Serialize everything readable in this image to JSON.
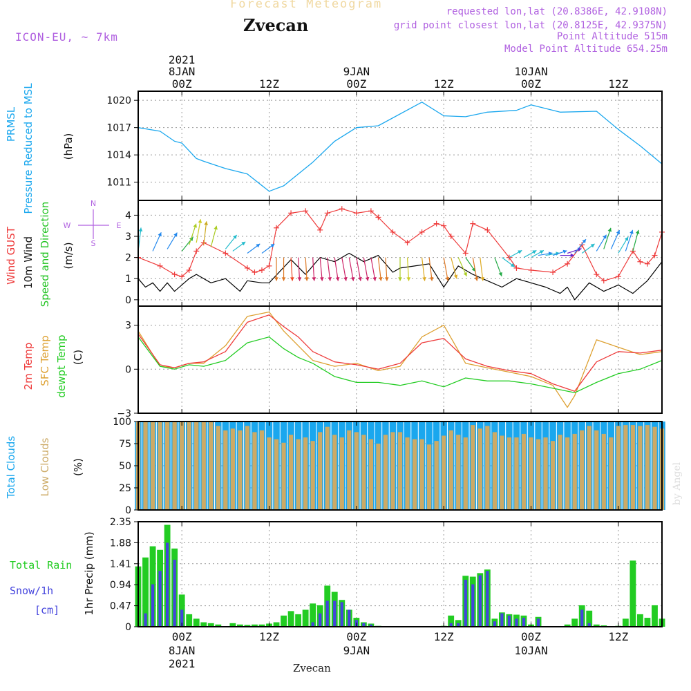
{
  "header": {
    "app_title": "Forecast Meteogram",
    "location": "Zvecan",
    "model": "ICON-EU, ~ 7km",
    "requested": "requested lon,lat (20.8386E, 42.9108N)",
    "grid_point": "grid point closest lon,lat (20.8125E, 42.9375N)",
    "point_alt": "Point Altitude 515m",
    "model_alt": "Model Point Altitude 654.25m",
    "footer_location": "Zvecan",
    "credit": "by Angel"
  },
  "colors": {
    "pressure": "#1aa7ee",
    "gust": "#ee3a3a",
    "wind": "#000000",
    "wind_dir": "#22c422",
    "temp": "#ee3a3a",
    "sfc_temp": "#dda030",
    "dewpt": "#22cc22",
    "total_clouds": "#1aa7ee",
    "low_clouds": "#ccaa66",
    "rain": "#22cc22",
    "snow": "#4444dd",
    "label_purple": "#b060e0"
  },
  "axes": {
    "top_year": "2021",
    "top_days": [
      "8JAN",
      "9JAN",
      "10JAN"
    ],
    "top_hours": [
      "00Z",
      "12Z",
      "00Z",
      "12Z",
      "00Z",
      "12Z"
    ],
    "bottom_hours": [
      "00Z",
      "12Z",
      "00Z",
      "12Z",
      "00Z",
      "12Z"
    ],
    "bottom_days": [
      "8JAN",
      "9JAN",
      "10JAN"
    ],
    "bottom_year": "2021"
  },
  "panels": {
    "pressure": {
      "label1": "PRMSL",
      "label2": "Pressure Reduced to MSL",
      "unit": "(hPa)",
      "ticks": [
        "1011",
        "1014",
        "1017",
        "1020"
      ]
    },
    "wind": {
      "label_gust": "Wind GUST",
      "label_wind": "10m Wind",
      "label_dir": "Speed and Direction",
      "unit": "(m/s)",
      "ticks": [
        "0",
        "1",
        "2",
        "3",
        "4"
      ],
      "compass_n": "N",
      "compass_s": "S",
      "compass_w": "W",
      "compass_e": "E"
    },
    "temp": {
      "label_t2m": "2m Temp",
      "label_sfc": "SFC Temp",
      "label_dew": "dewpt Temp",
      "unit": "(C)",
      "ticks": [
        "−3",
        "0",
        "3"
      ]
    },
    "clouds": {
      "label_total": "Total Clouds",
      "label_low": "Low Clouds",
      "unit": "(%)",
      "ticks": [
        "0",
        "25",
        "50",
        "75",
        "100"
      ]
    },
    "precip": {
      "label_rain": "Total  Rain",
      "label_snow": "Snow/1h",
      "label_cm": "[cm]",
      "unit": "1hr Precip (mm)",
      "ticks": [
        "0",
        "0.47",
        "0.94",
        "1.41",
        "1.88",
        "2.35"
      ]
    }
  },
  "chart_data": [
    {
      "type": "line",
      "title": "PRMSL Pressure Reduced to MSL",
      "ylabel": "(hPa)",
      "x_hours": [
        -6,
        66
      ],
      "ylim": [
        1009,
        1021
      ],
      "series": [
        {
          "name": "PRMSL",
          "x": [
            -6,
            -3,
            -1,
            0,
            2,
            3,
            6,
            9,
            12,
            14,
            18,
            21,
            24,
            27,
            33,
            36,
            39,
            42,
            46,
            48,
            52,
            57,
            60,
            63,
            66
          ],
          "values": [
            1017.0,
            1016.6,
            1015.5,
            1015.3,
            1013.6,
            1013.3,
            1012.5,
            1011.9,
            1010.0,
            1010.6,
            1013.2,
            1015.5,
            1017.0,
            1017.2,
            1019.8,
            1018.3,
            1018.2,
            1018.7,
            1018.9,
            1019.5,
            1018.7,
            1018.8,
            1016.8,
            1015.0,
            1013.0
          ]
        }
      ]
    },
    {
      "type": "line",
      "title": "Wind GUST / 10m Wind Speed and Direction",
      "ylabel": "(m/s)",
      "ylim": [
        -0.3,
        4.7
      ],
      "series": [
        {
          "name": "Wind GUST",
          "x": [
            -6,
            -3,
            -1,
            0,
            1,
            2,
            3,
            6,
            9,
            10,
            11,
            12,
            13,
            15,
            17,
            19,
            20,
            22,
            24,
            26,
            27,
            29,
            31,
            33,
            35,
            36,
            37,
            39,
            40,
            42,
            45,
            46,
            48,
            51,
            53,
            55,
            57,
            58,
            60,
            62,
            63,
            64,
            65,
            66
          ],
          "values": [
            2.0,
            1.6,
            1.2,
            1.1,
            1.4,
            2.3,
            2.7,
            2.2,
            1.5,
            1.3,
            1.4,
            1.6,
            3.4,
            4.1,
            4.2,
            3.3,
            4.1,
            4.3,
            4.1,
            4.2,
            3.9,
            3.2,
            2.7,
            3.2,
            3.6,
            3.5,
            3.0,
            2.2,
            3.6,
            3.3,
            2.0,
            1.5,
            1.4,
            1.3,
            1.7,
            2.6,
            1.2,
            0.9,
            1.1,
            2.3,
            1.8,
            1.7,
            2.1,
            3.2
          ]
        },
        {
          "name": "10m Wind",
          "x": [
            -6,
            -5,
            -4,
            -3,
            -2,
            -1,
            1,
            2,
            4,
            6,
            8,
            9,
            11,
            12,
            15,
            17,
            19,
            21,
            23,
            25,
            27,
            29,
            30,
            32,
            34,
            36,
            38,
            40,
            42,
            44,
            46,
            48,
            50,
            52,
            53,
            54,
            56,
            58,
            60,
            62,
            64,
            66
          ],
          "values": [
            1.0,
            0.6,
            0.8,
            0.4,
            0.8,
            0.4,
            1.0,
            1.2,
            0.8,
            1.0,
            0.4,
            0.9,
            0.8,
            0.8,
            1.9,
            1.2,
            2.0,
            1.8,
            2.2,
            1.8,
            2.1,
            1.3,
            1.5,
            1.6,
            1.7,
            0.6,
            1.6,
            1.2,
            0.9,
            0.6,
            1.0,
            0.8,
            0.6,
            0.3,
            0.6,
            0.0,
            0.8,
            0.4,
            0.7,
            0.3,
            0.9,
            1.8
          ]
        }
      ]
    },
    {
      "type": "line",
      "title": "2m Temp / SFC Temp / dewpt Temp",
      "ylabel": "(C)",
      "ylim": [
        -3,
        4.3
      ],
      "series": [
        {
          "name": "2m Temp",
          "x": [
            -6,
            -3,
            -1,
            1,
            3,
            6,
            9,
            12,
            14,
            16,
            18,
            21,
            24,
            27,
            30,
            33,
            36,
            39,
            42,
            45,
            48,
            51,
            54,
            57,
            60,
            63,
            66
          ],
          "values": [
            2.4,
            0.3,
            0.1,
            0.4,
            0.5,
            1.2,
            3.2,
            3.7,
            2.9,
            2.2,
            1.2,
            0.5,
            0.3,
            0.0,
            0.4,
            1.8,
            2.1,
            0.7,
            0.2,
            -0.1,
            -0.3,
            -1.0,
            -1.5,
            0.5,
            1.2,
            1.1,
            1.3
          ]
        },
        {
          "name": "SFC Temp",
          "x": [
            -6,
            -3,
            -1,
            1,
            3,
            6,
            9,
            12,
            14,
            16,
            18,
            21,
            24,
            27,
            30,
            33,
            36,
            39,
            42,
            45,
            48,
            51,
            53,
            54,
            57,
            60,
            63,
            66
          ],
          "values": [
            2.6,
            0.2,
            0.1,
            0.4,
            0.4,
            1.6,
            3.6,
            3.9,
            2.6,
            1.6,
            0.6,
            0.2,
            0.4,
            -0.1,
            0.2,
            2.2,
            3.0,
            0.4,
            0.1,
            -0.2,
            -0.5,
            -1.1,
            -2.6,
            -1.8,
            2.0,
            1.5,
            1.0,
            1.2
          ]
        },
        {
          "name": "dewpt Temp",
          "x": [
            -6,
            -3,
            -1,
            1,
            3,
            6,
            9,
            12,
            14,
            16,
            18,
            21,
            24,
            27,
            30,
            33,
            36,
            39,
            42,
            45,
            48,
            51,
            54,
            57,
            60,
            63,
            66
          ],
          "values": [
            2.2,
            0.2,
            0.0,
            0.3,
            0.2,
            0.6,
            1.8,
            2.2,
            1.4,
            0.8,
            0.4,
            -0.5,
            -0.9,
            -0.9,
            -1.1,
            -0.8,
            -1.2,
            -0.6,
            -0.8,
            -0.8,
            -1.0,
            -1.3,
            -1.6,
            -0.9,
            -0.3,
            0.0,
            0.6
          ]
        }
      ]
    },
    {
      "type": "bar",
      "title": "Total Clouds / Low Clouds",
      "ylabel": "(%)",
      "ylim": [
        0,
        100
      ],
      "x_hours_start": -6,
      "series": [
        {
          "name": "Total Clouds",
          "values": [
            100,
            100,
            100,
            100,
            100,
            100,
            100,
            100,
            100,
            100,
            100,
            100,
            100,
            100,
            100,
            100,
            100,
            100,
            100,
            100,
            100,
            100,
            100,
            100,
            100,
            100,
            100,
            100,
            100,
            100,
            100,
            100,
            100,
            100,
            100,
            100,
            100,
            100,
            100,
            100,
            100,
            100,
            100,
            100,
            100,
            100,
            100,
            100,
            100,
            100,
            100,
            100,
            100,
            100,
            100,
            100,
            100,
            100,
            100,
            100,
            100,
            100,
            100,
            100,
            100,
            100,
            100,
            100,
            100,
            100,
            100,
            100,
            100
          ]
        },
        {
          "name": "Low Clouds",
          "values": [
            100,
            100,
            100,
            100,
            100,
            100,
            100,
            100,
            100,
            100,
            100,
            95,
            90,
            92,
            90,
            95,
            88,
            90,
            82,
            80,
            76,
            85,
            80,
            82,
            78,
            88,
            94,
            85,
            82,
            90,
            88,
            85,
            80,
            75,
            85,
            88,
            88,
            82,
            80,
            80,
            74,
            78,
            84,
            90,
            85,
            82,
            96,
            92,
            95,
            88,
            84,
            82,
            82,
            86,
            82,
            80,
            82,
            78,
            85,
            82,
            86,
            90,
            95,
            90,
            86,
            82,
            95,
            96,
            96,
            95,
            96,
            94,
            92
          ]
        }
      ]
    },
    {
      "type": "bar",
      "title": "1hr Precip",
      "ylabel": "1hr Precip (mm)",
      "ylim": [
        0,
        2.35
      ],
      "x_hours_start": -6,
      "series": [
        {
          "name": "Total Rain",
          "values": [
            1.35,
            1.55,
            1.8,
            1.72,
            2.28,
            1.75,
            0.72,
            0.28,
            0.18,
            0.1,
            0.08,
            0.05,
            0,
            0.08,
            0.05,
            0.04,
            0.05,
            0.05,
            0.07,
            0.1,
            0.25,
            0.35,
            0.28,
            0.38,
            0.52,
            0.48,
            0.92,
            0.78,
            0.6,
            0.38,
            0.2,
            0.1,
            0.07,
            0.02,
            0,
            0,
            0,
            0,
            0,
            0,
            0,
            0,
            0.02,
            0.25,
            0.15,
            1.14,
            1.12,
            1.2,
            1.28,
            0.18,
            0.32,
            0.28,
            0.27,
            0.25,
            0.05,
            0.22,
            0,
            0,
            0,
            0.05,
            0.18,
            0.48,
            0.36,
            0.05,
            0.03,
            0,
            0.02,
            0.18,
            1.48,
            0.28,
            0.2,
            0.48,
            0.18
          ]
        },
        {
          "name": "Snow/1h",
          "values": [
            0,
            0.3,
            0.95,
            1.25,
            1.88,
            1.5,
            0.38,
            0,
            0,
            0,
            0,
            0,
            0,
            0,
            0,
            0,
            0,
            0,
            0,
            0,
            0,
            0,
            0,
            0,
            0.1,
            0.3,
            0.58,
            0.58,
            0.55,
            0.38,
            0.15,
            0.08,
            0.05,
            0,
            0,
            0,
            0,
            0,
            0,
            0,
            0,
            0,
            0,
            0.08,
            0.08,
            1.05,
            0.95,
            1.15,
            1.25,
            0.12,
            0.3,
            0.25,
            0.18,
            0.2,
            0,
            0.18,
            0,
            0,
            0,
            0,
            0,
            0.38,
            0.08,
            0,
            0,
            0,
            0,
            0,
            0,
            0,
            0,
            0,
            0
          ]
        }
      ]
    }
  ]
}
